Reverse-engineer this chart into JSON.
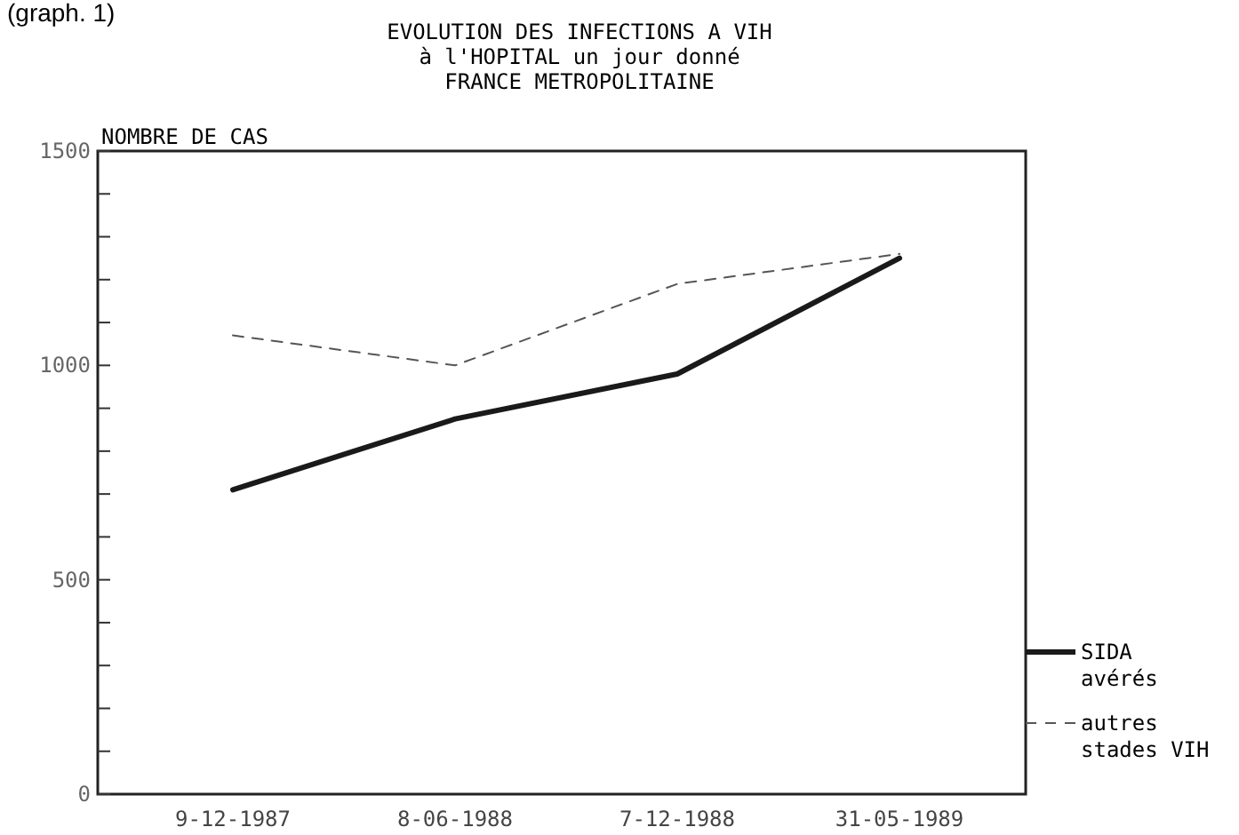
{
  "chart_data": {
    "type": "line",
    "title": "EVOLUTION DES INFECTIONS A VIH\nà l'HOPITAL un jour donné\nFRANCE METROPOLITAINE",
    "ylabel": "NOMBRE DE CAS",
    "annotations": [
      "(graph. 1)"
    ],
    "categories": [
      "9-12-1987",
      "8-06-1988",
      "7-12-1988",
      "31-05-1989"
    ],
    "series": [
      {
        "name": "SIDA avérés",
        "color": "#1a1a1a",
        "values": [
          710,
          875,
          980,
          1250
        ],
        "line_style": "solid"
      },
      {
        "name": "autres stades VIH",
        "color": "#555555",
        "values": [
          1070,
          1000,
          1190,
          1260
        ],
        "line_style": "dashed"
      }
    ],
    "ylim": [
      0,
      1500
    ],
    "yticks": [
      0,
      {
        "value": 100,
        "label": null
      },
      {
        "value": 200,
        "label": null
      },
      {
        "value": 300,
        "label": null
      },
      {
        "value": 400,
        "label": null
      },
      500,
      {
        "value": 600,
        "label": null
      },
      {
        "value": 700,
        "label": null
      },
      {
        "value": 800,
        "label": null
      },
      {
        "value": 900,
        "label": null
      },
      1000,
      {
        "value": 1100,
        "label": null
      },
      {
        "value": 1200,
        "label": null
      },
      {
        "value": 1300,
        "label": null
      },
      {
        "value": 1400,
        "label": null
      },
      1500
    ],
    "grid": false,
    "legend": "bottom right"
  }
}
